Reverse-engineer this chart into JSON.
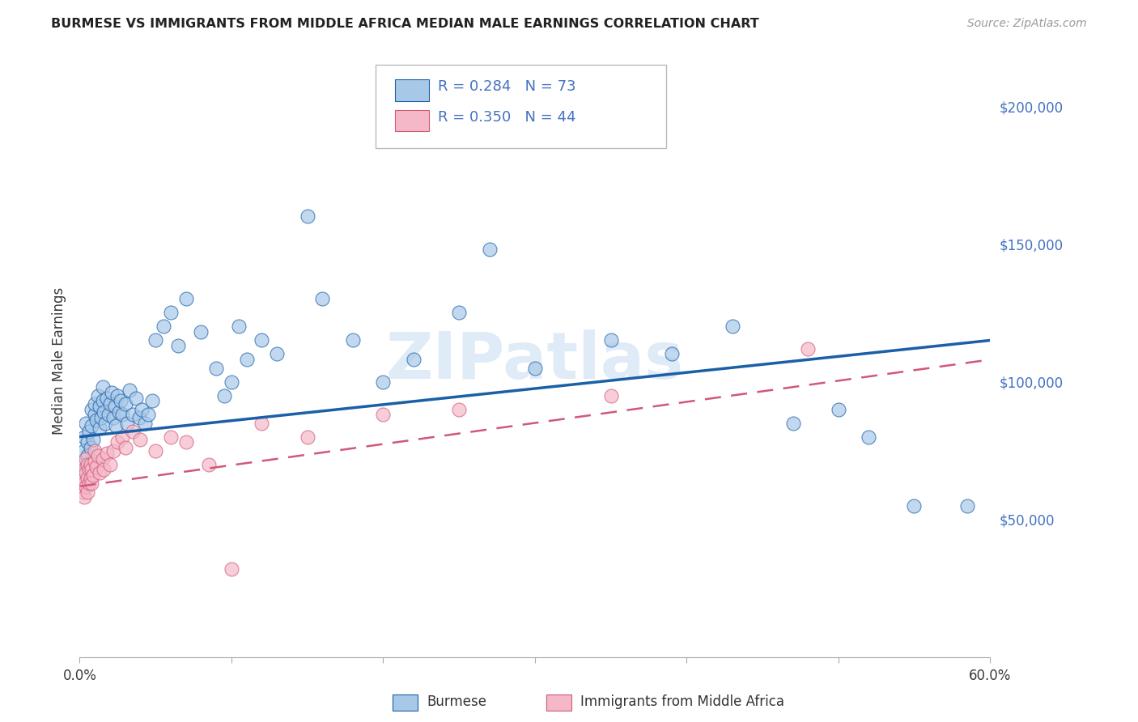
{
  "title": "BURMESE VS IMMIGRANTS FROM MIDDLE AFRICA MEDIAN MALE EARNINGS CORRELATION CHART",
  "source": "Source: ZipAtlas.com",
  "ylabel": "Median Male Earnings",
  "xlim": [
    0.0,
    0.6
  ],
  "ylim": [
    0,
    215000
  ],
  "xticks": [
    0.0,
    0.1,
    0.2,
    0.3,
    0.4,
    0.5,
    0.6
  ],
  "xticklabels": [
    "0.0%",
    "",
    "",
    "",
    "",
    "",
    "60.0%"
  ],
  "yticks_right": [
    50000,
    100000,
    150000,
    200000
  ],
  "ytick_labels_right": [
    "$50,000",
    "$100,000",
    "$150,000",
    "$200,000"
  ],
  "color_blue": "#a8c8e8",
  "color_blue_line": "#1a5fa8",
  "color_pink": "#f5b8c8",
  "color_pink_line": "#d05878",
  "color_blue_text": "#4472c4",
  "watermark": "ZIPatlas",
  "blue_line_x0": 0.0,
  "blue_line_y0": 80000,
  "blue_line_x1": 0.6,
  "blue_line_y1": 115000,
  "pink_line_x0": 0.0,
  "pink_line_y0": 62000,
  "pink_line_x1": 0.6,
  "pink_line_y1": 108000,
  "blue_x": [
    0.002,
    0.003,
    0.003,
    0.004,
    0.004,
    0.005,
    0.005,
    0.006,
    0.007,
    0.008,
    0.008,
    0.009,
    0.01,
    0.01,
    0.011,
    0.012,
    0.013,
    0.013,
    0.014,
    0.015,
    0.015,
    0.016,
    0.017,
    0.018,
    0.019,
    0.02,
    0.021,
    0.022,
    0.023,
    0.024,
    0.025,
    0.026,
    0.027,
    0.028,
    0.03,
    0.031,
    0.033,
    0.035,
    0.037,
    0.039,
    0.041,
    0.043,
    0.045,
    0.048,
    0.05,
    0.055,
    0.06,
    0.065,
    0.07,
    0.08,
    0.09,
    0.095,
    0.1,
    0.105,
    0.11,
    0.12,
    0.13,
    0.15,
    0.16,
    0.18,
    0.2,
    0.22,
    0.25,
    0.27,
    0.3,
    0.35,
    0.39,
    0.43,
    0.47,
    0.5,
    0.52,
    0.55,
    0.585
  ],
  "blue_y": [
    70000,
    75000,
    80000,
    68000,
    85000,
    73000,
    78000,
    82000,
    76000,
    90000,
    84000,
    79000,
    88000,
    92000,
    86000,
    95000,
    83000,
    91000,
    87000,
    93000,
    98000,
    89000,
    85000,
    94000,
    88000,
    92000,
    96000,
    87000,
    91000,
    84000,
    95000,
    89000,
    93000,
    88000,
    92000,
    85000,
    97000,
    88000,
    94000,
    87000,
    90000,
    85000,
    88000,
    93000,
    115000,
    120000,
    125000,
    113000,
    130000,
    118000,
    105000,
    95000,
    100000,
    120000,
    108000,
    115000,
    110000,
    160000,
    130000,
    115000,
    100000,
    108000,
    125000,
    148000,
    105000,
    115000,
    110000,
    120000,
    85000,
    90000,
    80000,
    55000,
    55000
  ],
  "pink_x": [
    0.002,
    0.002,
    0.003,
    0.003,
    0.003,
    0.004,
    0.004,
    0.004,
    0.005,
    0.005,
    0.005,
    0.006,
    0.006,
    0.007,
    0.007,
    0.008,
    0.008,
    0.009,
    0.01,
    0.01,
    0.011,
    0.012,
    0.013,
    0.015,
    0.016,
    0.018,
    0.02,
    0.022,
    0.025,
    0.028,
    0.03,
    0.035,
    0.04,
    0.05,
    0.06,
    0.07,
    0.085,
    0.1,
    0.12,
    0.15,
    0.2,
    0.25,
    0.35,
    0.48
  ],
  "pink_y": [
    60000,
    65000,
    58000,
    63000,
    68000,
    62000,
    67000,
    72000,
    60000,
    65000,
    70000,
    63000,
    68000,
    65000,
    70000,
    63000,
    68000,
    66000,
    71000,
    75000,
    69000,
    73000,
    67000,
    72000,
    68000,
    74000,
    70000,
    75000,
    78000,
    80000,
    76000,
    82000,
    79000,
    75000,
    80000,
    78000,
    70000,
    32000,
    85000,
    80000,
    88000,
    90000,
    95000,
    112000
  ]
}
